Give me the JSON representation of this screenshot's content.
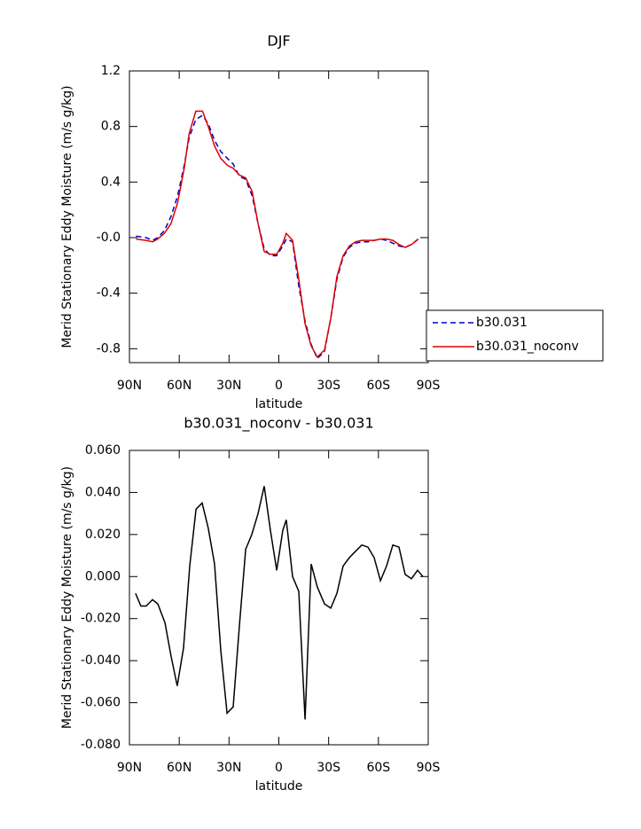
{
  "chart_data": [
    {
      "type": "line",
      "title": "DJF",
      "ylabel": "Merid Stationary Eddy Moisture (m/s g/kg)",
      "xlabel": "latitude",
      "x": [
        86,
        80,
        76,
        73,
        69,
        65,
        61,
        57,
        54,
        50,
        46,
        42.5,
        38.7,
        35,
        31,
        27.5,
        23.7,
        20,
        16,
        12.5,
        8.8,
        5,
        1.3,
        -2.4,
        -4.5,
        -8.3,
        -12,
        -15.8,
        -19.5,
        -23.2,
        -27.5,
        -31.3,
        -35,
        -38.7,
        -42.5,
        -46.2,
        -50,
        -53.7,
        -57.4,
        -61.2,
        -64.9,
        -68.7,
        -72.4,
        -76.1,
        -79.9,
        -84
      ],
      "series": [
        {
          "name": "b30.031",
          "color": "#0000cc",
          "style": "dashed",
          "values": [
            0.01,
            0.0,
            -0.02,
            0.0,
            0.05,
            0.15,
            0.3,
            0.52,
            0.72,
            0.85,
            0.88,
            0.82,
            0.7,
            0.62,
            0.57,
            0.53,
            0.44,
            0.42,
            0.3,
            0.1,
            -0.08,
            -0.13,
            -0.13,
            -0.06,
            -0.01,
            -0.03,
            -0.35,
            -0.6,
            -0.77,
            -0.87,
            -0.82,
            -0.58,
            -0.3,
            -0.14,
            -0.07,
            -0.04,
            -0.03,
            -0.03,
            -0.02,
            -0.01,
            -0.02,
            -0.04,
            -0.06,
            -0.07,
            -0.05,
            -0.01
          ]
        },
        {
          "name": "b30.031_noconv",
          "color": "#dd0000",
          "style": "solid",
          "values": [
            -0.01,
            -0.02,
            -0.03,
            -0.01,
            0.03,
            0.1,
            0.25,
            0.5,
            0.75,
            0.91,
            0.91,
            0.8,
            0.66,
            0.57,
            0.52,
            0.5,
            0.45,
            0.43,
            0.33,
            0.1,
            -0.1,
            -0.12,
            -0.12,
            -0.04,
            0.03,
            -0.02,
            -0.3,
            -0.62,
            -0.78,
            -0.86,
            -0.81,
            -0.58,
            -0.28,
            -0.13,
            -0.06,
            -0.03,
            -0.02,
            -0.02,
            -0.02,
            -0.01,
            -0.01,
            -0.02,
            -0.05,
            -0.07,
            -0.05,
            -0.01
          ]
        }
      ],
      "xlim": [
        90,
        -90
      ],
      "xticks": [
        {
          "value": 90,
          "label": "90N"
        },
        {
          "value": 60,
          "label": "60N"
        },
        {
          "value": 30,
          "label": "30N"
        },
        0,
        {
          "value": -30,
          "label": "30S"
        },
        {
          "value": -60,
          "label": "60S"
        },
        {
          "value": -90,
          "label": "90S"
        }
      ],
      "ylim": [
        -0.9,
        1.2
      ],
      "yticks": [
        1.2,
        0.8,
        0.4,
        {
          "value": 0,
          "label": "-0.0"
        },
        -0.4,
        -0.8
      ],
      "legend": "outside-right"
    },
    {
      "type": "line",
      "title": "b30.031_noconv - b30.031",
      "ylabel": "Merid Stationary Eddy Moisture (m/s g/kg)",
      "xlabel": "latitude",
      "x": [
        86.3,
        83.1,
        79.9,
        76.1,
        72.9,
        68.6,
        64.9,
        61.2,
        57.4,
        53.7,
        49.9,
        46.2,
        42.5,
        38.7,
        35,
        31.2,
        27.5,
        23.7,
        20,
        16.3,
        12.5,
        8.8,
        5.1,
        1.3,
        -2.4,
        -4.5,
        -8.3,
        -12,
        -15.8,
        -19.5,
        -23.2,
        -27.5,
        -31.3,
        -35,
        -38.7,
        -42.5,
        -46.2,
        -50,
        -53.7,
        -57.4,
        -61.2,
        -64.9,
        -68.7,
        -72.4,
        -76.1,
        -79.9,
        -83.6,
        -86.8
      ],
      "series": [
        {
          "color": "#000000",
          "style": "solid",
          "values": [
            -0.008,
            -0.014,
            -0.014,
            -0.011,
            -0.013,
            -0.022,
            -0.038,
            -0.052,
            -0.034,
            0.005,
            0.032,
            0.035,
            0.023,
            0.006,
            -0.035,
            -0.065,
            -0.062,
            -0.023,
            0.013,
            0.02,
            0.03,
            0.043,
            0.022,
            0.003,
            0.022,
            0.027,
            0.0,
            -0.007,
            -0.068,
            0.006,
            -0.005,
            -0.013,
            -0.015,
            -0.008,
            0.005,
            0.009,
            0.012,
            0.015,
            0.014,
            0.009,
            -0.002,
            0.005,
            0.015,
            0.014,
            0.001,
            -0.001,
            0.003,
            0.0
          ]
        }
      ],
      "xlim": [
        90,
        -90
      ],
      "xticks": [
        {
          "value": 90,
          "label": "90N"
        },
        {
          "value": 60,
          "label": "60N"
        },
        {
          "value": 30,
          "label": "30N"
        },
        0,
        {
          "value": -30,
          "label": "30S"
        },
        {
          "value": -60,
          "label": "60S"
        },
        {
          "value": -90,
          "label": "90S"
        }
      ],
      "ylim": [
        -0.08,
        0.06
      ],
      "yticks": [
        {
          "value": 0.06,
          "label": "0.060"
        },
        {
          "value": 0.04,
          "label": "0.040"
        },
        {
          "value": 0.02,
          "label": "0.020"
        },
        {
          "value": 0,
          "label": "0.000"
        },
        {
          "value": -0.02,
          "label": "-0.020"
        },
        {
          "value": -0.04,
          "label": "-0.040"
        },
        {
          "value": -0.06,
          "label": "-0.060"
        },
        {
          "value": -0.08,
          "label": "-0.080"
        }
      ]
    }
  ]
}
